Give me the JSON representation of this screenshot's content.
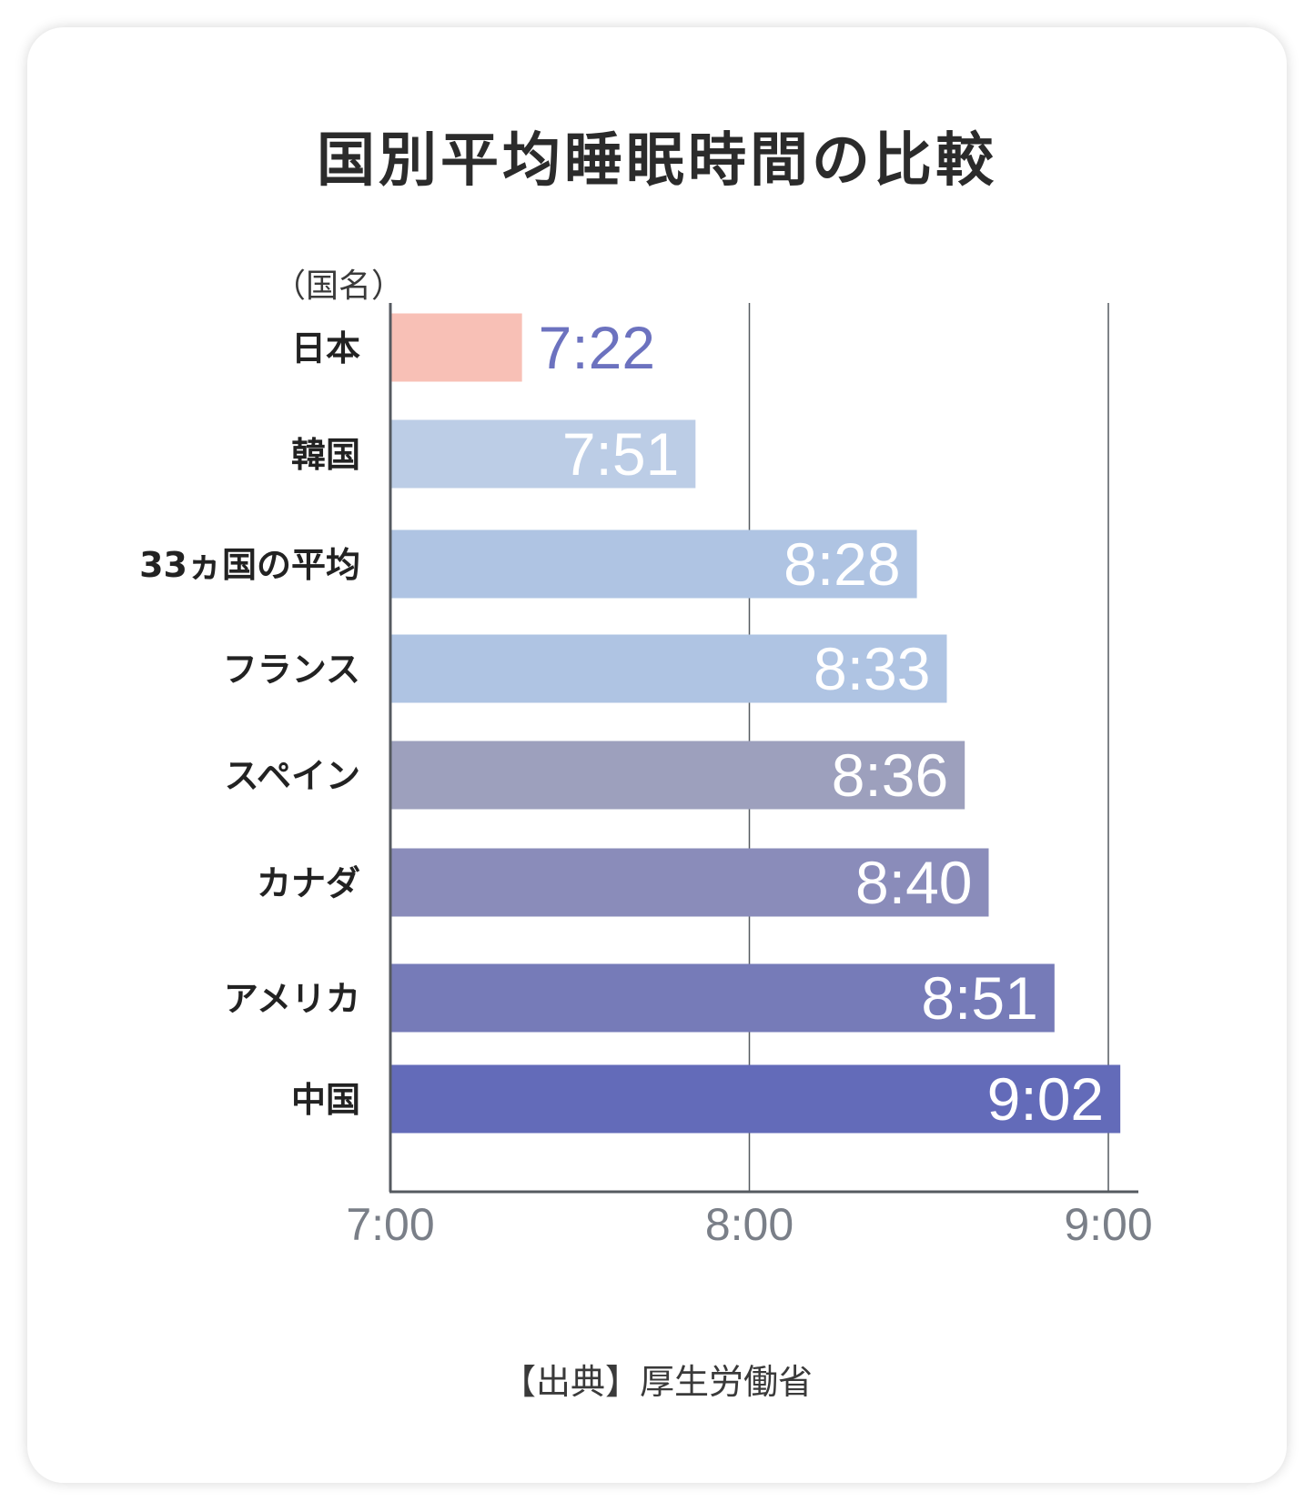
{
  "chart_data": {
    "type": "bar",
    "orientation": "horizontal",
    "title": "国別平均睡眠時間の比較",
    "ylabel": "（国名）",
    "source": "【出典】厚生労働省",
    "categories": [
      "日本",
      "韓国",
      "33ヵ国の平均",
      "フランス",
      "スペイン",
      "カナダ",
      "アメリカ",
      "中国"
    ],
    "values": [
      442,
      471,
      508,
      513,
      516,
      520,
      531,
      542
    ],
    "value_labels": [
      "7:22",
      "7:51",
      "8:28",
      "8:33",
      "8:36",
      "8:40",
      "8:51",
      "9:02"
    ],
    "xlim": [
      420,
      540
    ],
    "xticks": [
      420,
      480,
      540
    ],
    "xtick_labels": [
      "7:00",
      "8:00",
      "9:00"
    ],
    "grid": true,
    "colors": [
      "#f8c0b6",
      "#bccde6",
      "#afc4e3",
      "#afc4e3",
      "#9da0bd",
      "#8a8cba",
      "#767bb8",
      "#636bb9"
    ],
    "label_colors": [
      "#6c72bf",
      "#ffffff",
      "#ffffff",
      "#ffffff",
      "#ffffff",
      "#ffffff",
      "#ffffff",
      "#ffffff"
    ]
  }
}
